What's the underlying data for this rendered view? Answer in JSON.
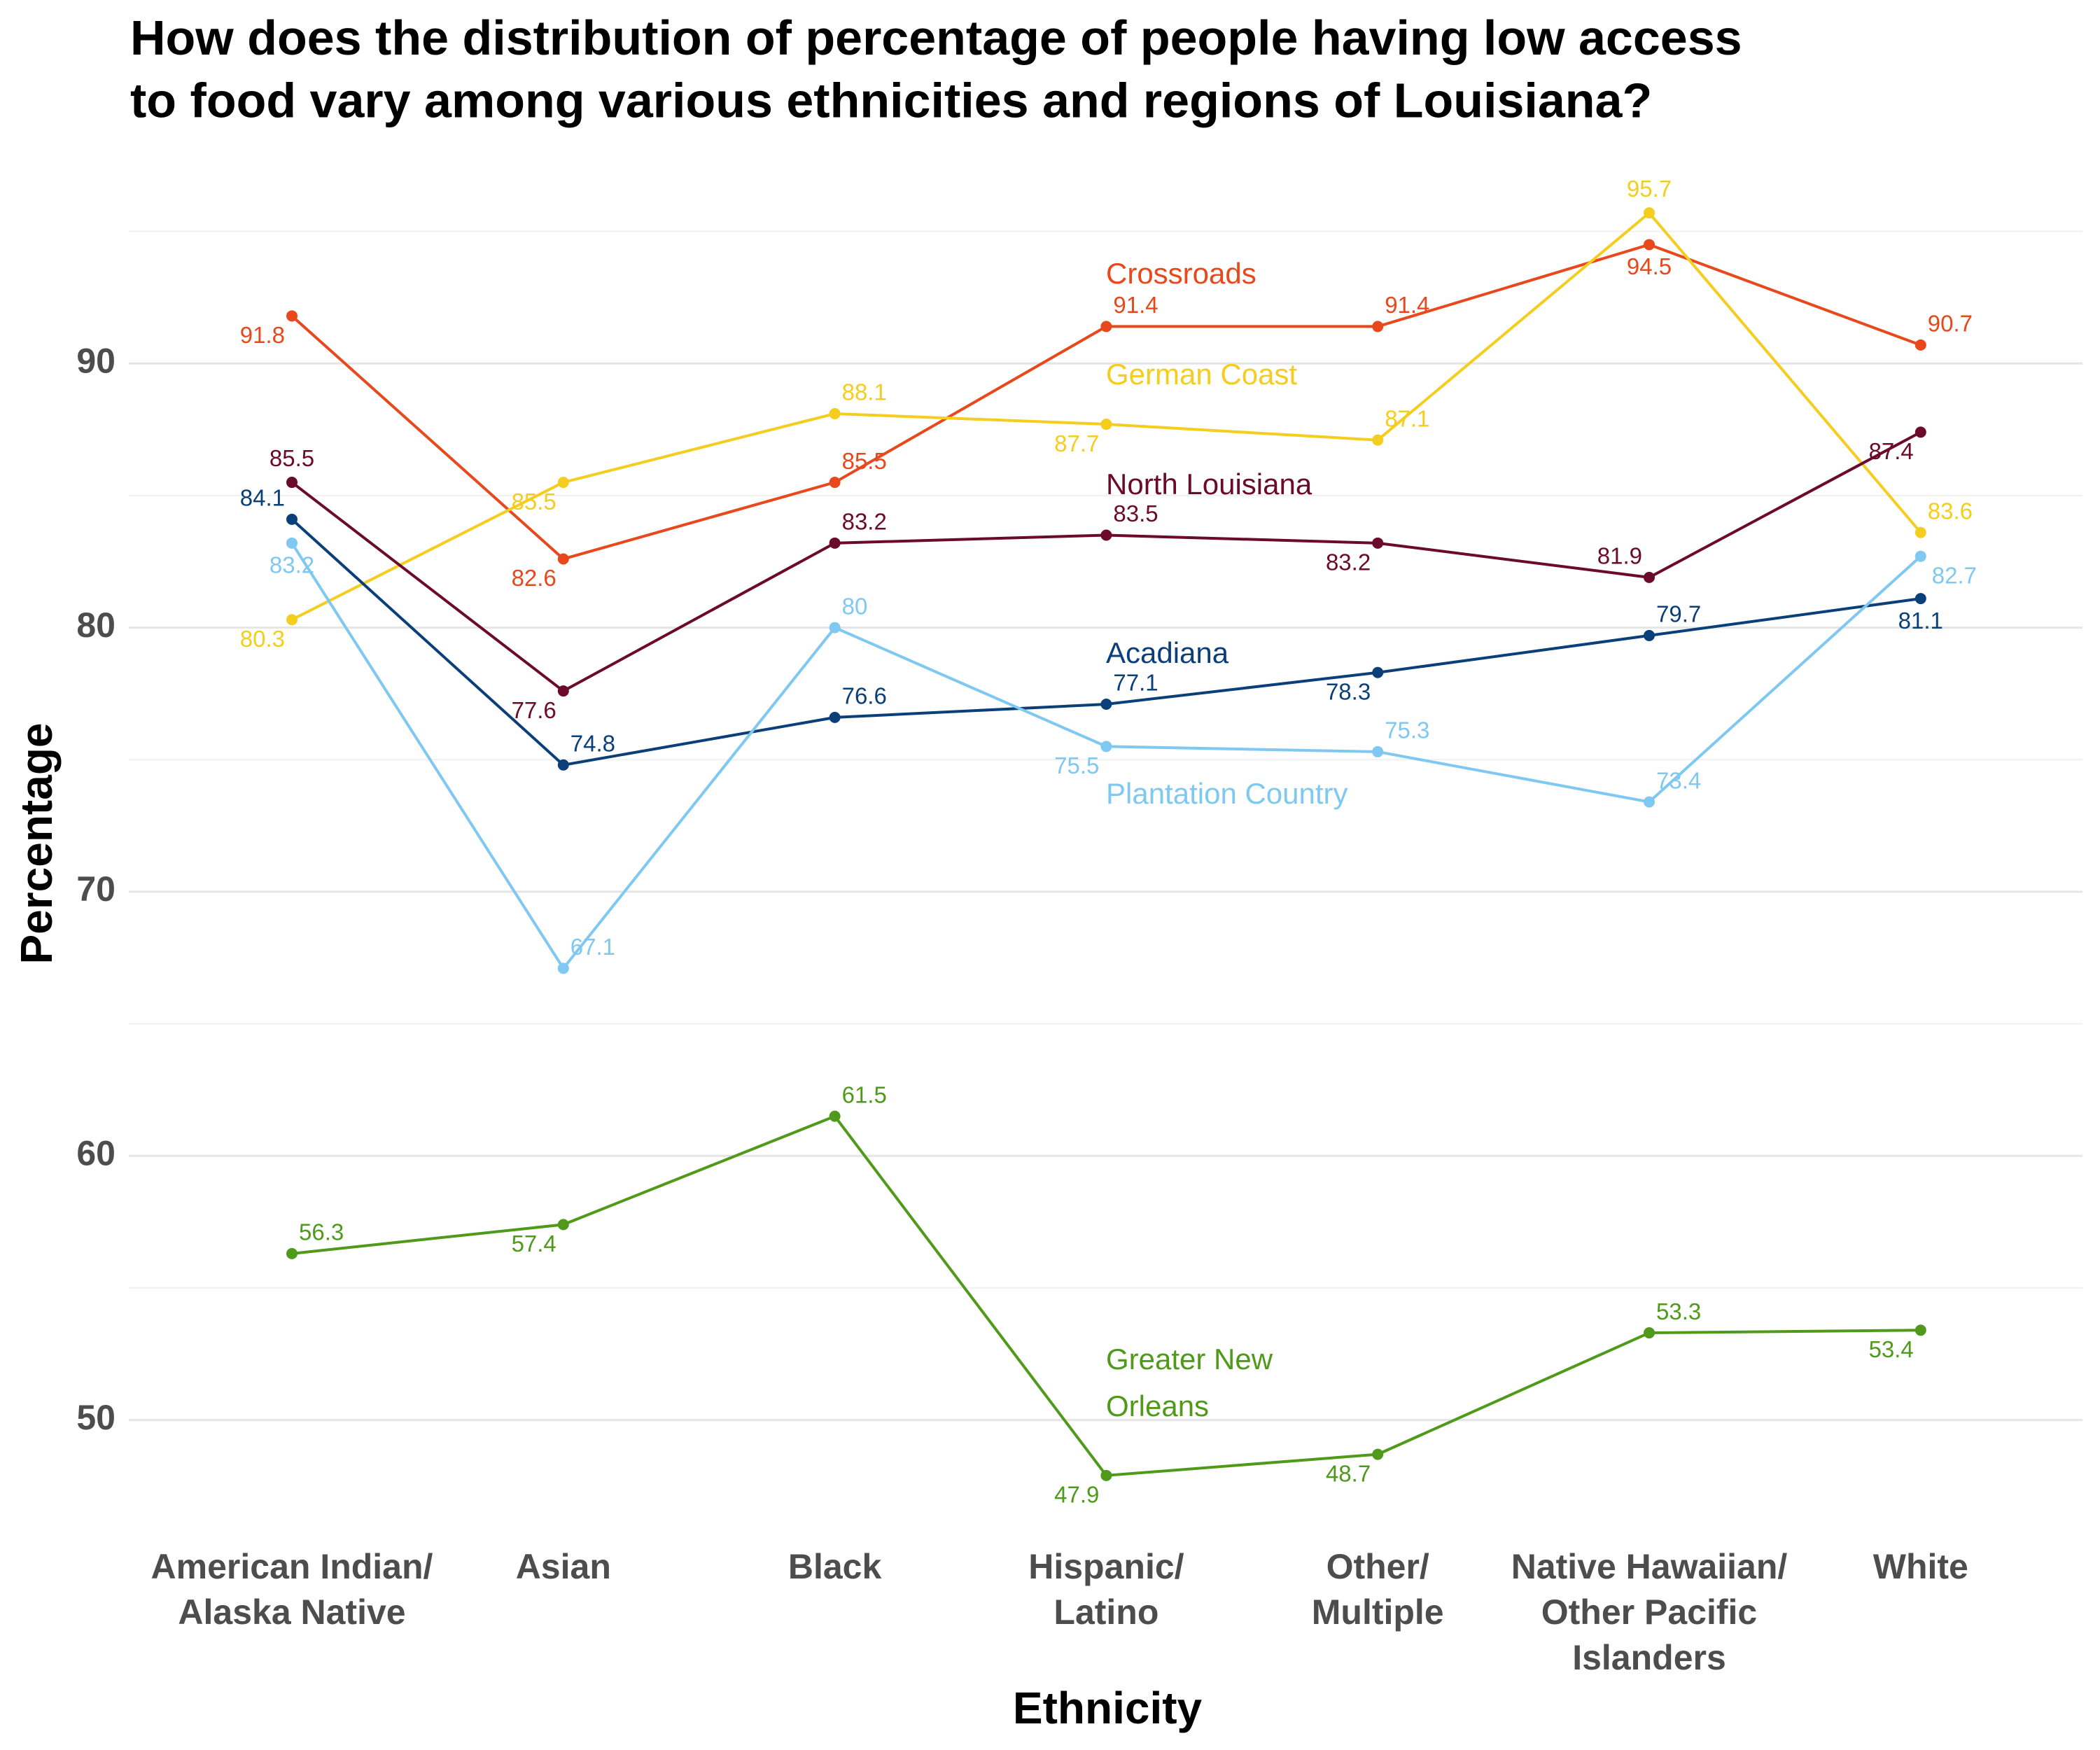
{
  "chart_data": {
    "type": "line",
    "title": "How does the distribution of percentage of people having low access\nto food vary among various ethnicities and regions of Louisiana?",
    "x_label": "Ethnicity",
    "y_label": "Percentage",
    "categories": [
      "American Indian/\nAlaska Native",
      "Asian",
      "Black",
      "Hispanic/\nLatino",
      "Other/\nMultiple",
      "Native Hawaiian/\nOther Pacific\nIslanders",
      "White"
    ],
    "series": [
      {
        "name": "Crossroads",
        "color": "#e8481c",
        "values": [
          91.8,
          82.6,
          85.5,
          91.4,
          91.4,
          94.5,
          90.7
        ]
      },
      {
        "name": "German Coast",
        "color": "#f5cd1f",
        "values": [
          80.3,
          85.5,
          88.1,
          87.7,
          87.1,
          95.7,
          83.6
        ]
      },
      {
        "name": "North Louisiana",
        "color": "#6b0a2a",
        "values": [
          85.5,
          77.6,
          83.2,
          83.5,
          83.2,
          81.9,
          87.4
        ]
      },
      {
        "name": "Acadiana",
        "color": "#0b3f7a",
        "values": [
          84.1,
          74.8,
          76.6,
          77.1,
          78.3,
          79.7,
          81.1
        ]
      },
      {
        "name": "Plantation Country",
        "color": "#7ec8f2",
        "values": [
          83.2,
          67.1,
          80,
          75.5,
          75.3,
          73.4,
          82.7
        ]
      },
      {
        "name": "Greater New\nOrleans",
        "color": "#4f9a1a",
        "values": [
          56.3,
          57.4,
          61.5,
          47.9,
          48.7,
          53.3,
          53.4
        ]
      }
    ],
    "ylim": [
      45.51,
      98.09
    ],
    "yticks": [
      50,
      60,
      70,
      80,
      90
    ],
    "minor_yticks": [
      55,
      65,
      75,
      85,
      95
    ],
    "grid": true
  }
}
